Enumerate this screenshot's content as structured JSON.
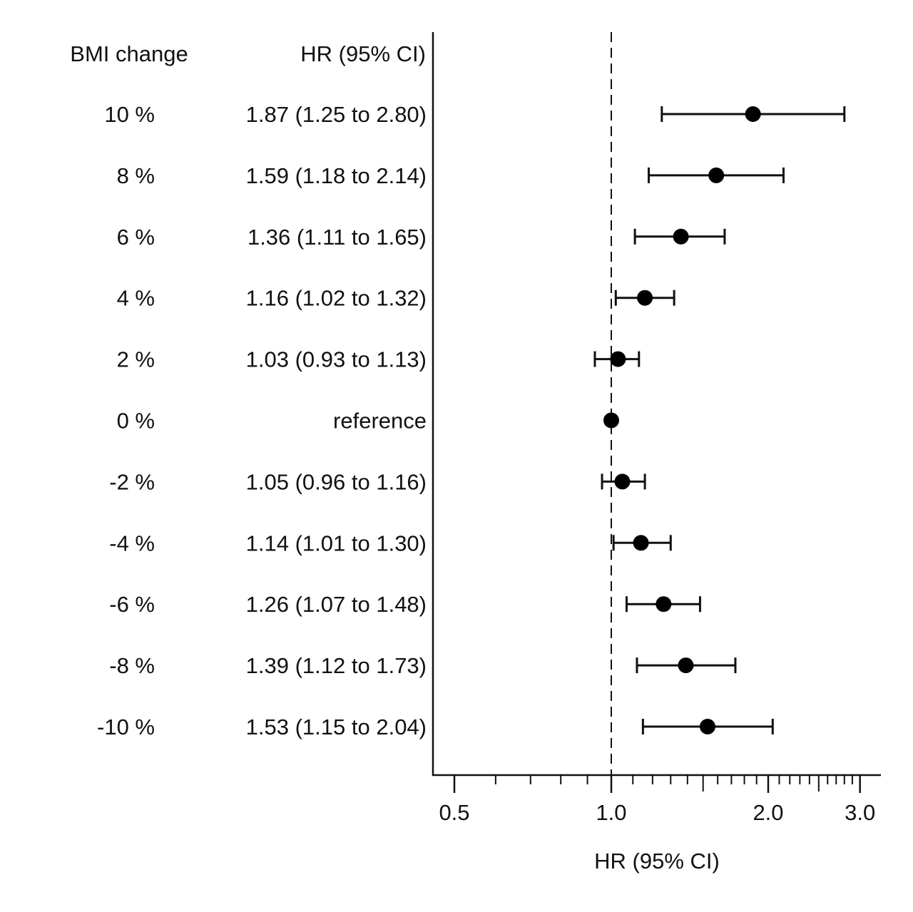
{
  "chart_data": {
    "type": "forest",
    "xlabel": "HR (95% CI)",
    "xscale": "log",
    "xlim": [
      0.5,
      3.2
    ],
    "reference_line": 1.0,
    "x_tick_labels": [
      "0.5",
      "1.0",
      "2.0",
      "3.0"
    ],
    "x_ticks": [
      0.5,
      1.0,
      2.0,
      3.0
    ],
    "column_headers": {
      "group": "BMI change",
      "estimate": "HR (95% CI)"
    },
    "rows": [
      {
        "label": "10 %",
        "text": "1.87 (1.25 to 2.80)",
        "hr": 1.87,
        "lo": 1.25,
        "hi": 2.8
      },
      {
        "label": "8 %",
        "text": "1.59 (1.18 to 2.14)",
        "hr": 1.59,
        "lo": 1.18,
        "hi": 2.14
      },
      {
        "label": "6 %",
        "text": "1.36 (1.11 to 1.65)",
        "hr": 1.36,
        "lo": 1.11,
        "hi": 1.65
      },
      {
        "label": "4 %",
        "text": "1.16 (1.02 to 1.32)",
        "hr": 1.16,
        "lo": 1.02,
        "hi": 1.32
      },
      {
        "label": "2 %",
        "text": "1.03 (0.93 to 1.13)",
        "hr": 1.03,
        "lo": 0.93,
        "hi": 1.13
      },
      {
        "label": "0 %",
        "text": "reference",
        "hr": 1.0,
        "lo": null,
        "hi": null
      },
      {
        "label": "-2 %",
        "text": "1.05 (0.96 to 1.16)",
        "hr": 1.05,
        "lo": 0.96,
        "hi": 1.16
      },
      {
        "label": "-4 %",
        "text": "1.14 (1.01 to 1.30)",
        "hr": 1.14,
        "lo": 1.01,
        "hi": 1.3
      },
      {
        "label": "-6 %",
        "text": "1.26 (1.07 to 1.48)",
        "hr": 1.26,
        "lo": 1.07,
        "hi": 1.48
      },
      {
        "label": "-8 %",
        "text": "1.39 (1.12 to 1.73)",
        "hr": 1.39,
        "lo": 1.12,
        "hi": 1.73
      },
      {
        "label": "-10 %",
        "text": "1.53 (1.15 to 2.04)",
        "hr": 1.53,
        "lo": 1.15,
        "hi": 2.04
      }
    ]
  }
}
